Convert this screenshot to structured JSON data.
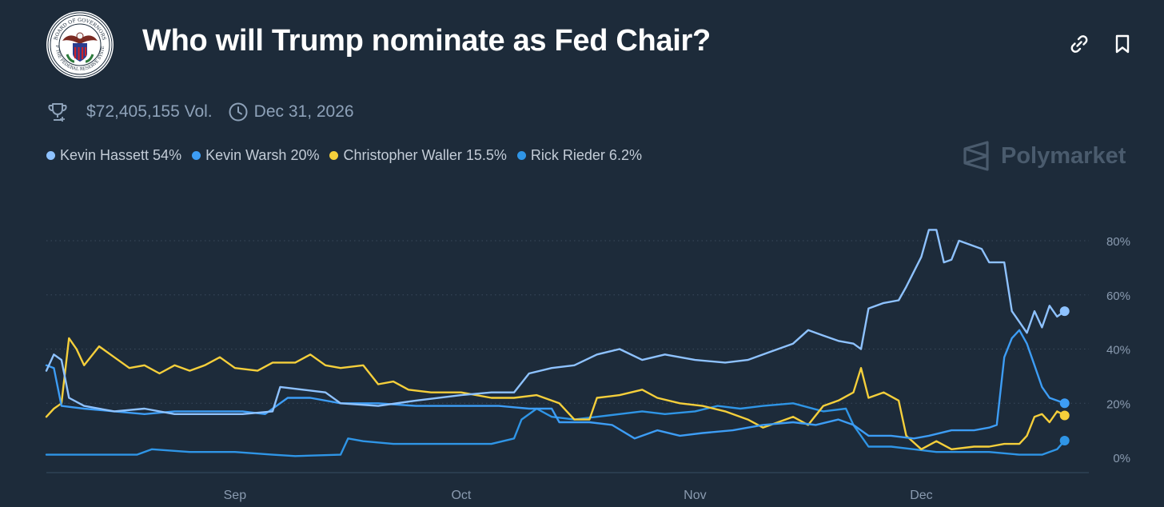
{
  "header": {
    "title": "Who will Trump nominate as Fed Chair?",
    "logo_text_top": "BOARD OF GOVERNORS",
    "logo_text_bottom": "OF THE FEDERAL RESERVE SYSTEM"
  },
  "meta": {
    "volume": "$72,405,155 Vol.",
    "end_date": "Dec 31, 2026",
    "volume_icon": "trophy-icon",
    "date_icon": "clock-icon"
  },
  "toolbar": {
    "link_icon": "link-icon",
    "bookmark_icon": "bookmark-icon"
  },
  "brand": {
    "name": "Polymarket"
  },
  "legend": [
    {
      "label": "Kevin Hassett 54%",
      "color": "#8ec2ff"
    },
    {
      "label": "Kevin Warsh 20%",
      "color": "#3d9df5"
    },
    {
      "label": "Christopher Waller 15.5%",
      "color": "#f5cf3b"
    },
    {
      "label": "Rick Rieder 6.2%",
      "color": "#2f95e6"
    }
  ],
  "colors": {
    "background": "#1d2b3a",
    "grid": "#3a4a5c",
    "axis_text": "#8a9bb0"
  },
  "chart_data": {
    "type": "line",
    "x_range": [
      "2025-08-07",
      "2025-12-23"
    ],
    "ylim": [
      0,
      90
    ],
    "y_ticks": [
      0,
      20,
      40,
      60,
      80
    ],
    "y_tick_labels": [
      "0%",
      "20%",
      "40%",
      "60%",
      "80%"
    ],
    "x_ticks": [
      {
        "date": "2025-09-01",
        "label": "Sep"
      },
      {
        "date": "2025-10-01",
        "label": "Oct"
      },
      {
        "date": "2025-11-01",
        "label": "Nov"
      },
      {
        "date": "2025-12-01",
        "label": "Dec"
      }
    ],
    "grid": true,
    "legend_position": "top-left",
    "series": [
      {
        "name": "Kevin Hassett",
        "color": "#8ec2ff",
        "points": [
          [
            "2025-08-07",
            32
          ],
          [
            "2025-08-08",
            38
          ],
          [
            "2025-08-09",
            36
          ],
          [
            "2025-08-10",
            22
          ],
          [
            "2025-08-12",
            19
          ],
          [
            "2025-08-16",
            17
          ],
          [
            "2025-08-20",
            18
          ],
          [
            "2025-08-24",
            16
          ],
          [
            "2025-08-28",
            16
          ],
          [
            "2025-09-02",
            16
          ],
          [
            "2025-09-06",
            17
          ],
          [
            "2025-09-07",
            26
          ],
          [
            "2025-09-10",
            25
          ],
          [
            "2025-09-13",
            24
          ],
          [
            "2025-09-15",
            20
          ],
          [
            "2025-09-20",
            19
          ],
          [
            "2025-09-25",
            21
          ],
          [
            "2025-10-01",
            23
          ],
          [
            "2025-10-05",
            24
          ],
          [
            "2025-10-08",
            24
          ],
          [
            "2025-10-10",
            31
          ],
          [
            "2025-10-13",
            33
          ],
          [
            "2025-10-16",
            34
          ],
          [
            "2025-10-19",
            38
          ],
          [
            "2025-10-22",
            40
          ],
          [
            "2025-10-25",
            36
          ],
          [
            "2025-10-28",
            38
          ],
          [
            "2025-11-01",
            36
          ],
          [
            "2025-11-05",
            35
          ],
          [
            "2025-11-08",
            36
          ],
          [
            "2025-11-11",
            39
          ],
          [
            "2025-11-14",
            42
          ],
          [
            "2025-11-16",
            47
          ],
          [
            "2025-11-18",
            45
          ],
          [
            "2025-11-20",
            43
          ],
          [
            "2025-11-22",
            42
          ],
          [
            "2025-11-23",
            40
          ],
          [
            "2025-11-24",
            55
          ],
          [
            "2025-11-26",
            57
          ],
          [
            "2025-11-28",
            58
          ],
          [
            "2025-11-29",
            63
          ],
          [
            "2025-12-01",
            74
          ],
          [
            "2025-12-02",
            84
          ],
          [
            "2025-12-03",
            84
          ],
          [
            "2025-12-04",
            72
          ],
          [
            "2025-12-05",
            73
          ],
          [
            "2025-12-06",
            80
          ],
          [
            "2025-12-07",
            79
          ],
          [
            "2025-12-09",
            77
          ],
          [
            "2025-12-10",
            72
          ],
          [
            "2025-12-12",
            72
          ],
          [
            "2025-12-13",
            54
          ],
          [
            "2025-12-14",
            50
          ],
          [
            "2025-12-15",
            46
          ],
          [
            "2025-12-16",
            54
          ],
          [
            "2025-12-17",
            48
          ],
          [
            "2025-12-18",
            56
          ],
          [
            "2025-12-19",
            52
          ],
          [
            "2025-12-20",
            54
          ]
        ]
      },
      {
        "name": "Kevin Warsh",
        "color": "#3d9df5",
        "points": [
          [
            "2025-08-07",
            34
          ],
          [
            "2025-08-08",
            33
          ],
          [
            "2025-08-09",
            19
          ],
          [
            "2025-08-12",
            18
          ],
          [
            "2025-08-16",
            17
          ],
          [
            "2025-08-20",
            16
          ],
          [
            "2025-08-24",
            17
          ],
          [
            "2025-08-28",
            17
          ],
          [
            "2025-09-02",
            17
          ],
          [
            "2025-09-05",
            16
          ],
          [
            "2025-09-08",
            22
          ],
          [
            "2025-09-11",
            22
          ],
          [
            "2025-09-15",
            20
          ],
          [
            "2025-09-20",
            20
          ],
          [
            "2025-09-25",
            19
          ],
          [
            "2025-10-01",
            19
          ],
          [
            "2025-10-06",
            19
          ],
          [
            "2025-10-10",
            18
          ],
          [
            "2025-10-13",
            18
          ],
          [
            "2025-10-14",
            13
          ],
          [
            "2025-10-18",
            13
          ],
          [
            "2025-10-21",
            12
          ],
          [
            "2025-10-24",
            7
          ],
          [
            "2025-10-27",
            10
          ],
          [
            "2025-10-30",
            8
          ],
          [
            "2025-11-02",
            9
          ],
          [
            "2025-11-06",
            10
          ],
          [
            "2025-11-10",
            12
          ],
          [
            "2025-11-14",
            13
          ],
          [
            "2025-11-17",
            12
          ],
          [
            "2025-11-20",
            14
          ],
          [
            "2025-11-22",
            12
          ],
          [
            "2025-11-24",
            8
          ],
          [
            "2025-11-27",
            8
          ],
          [
            "2025-11-30",
            7
          ],
          [
            "2025-12-02",
            8
          ],
          [
            "2025-12-05",
            10
          ],
          [
            "2025-12-08",
            10
          ],
          [
            "2025-12-10",
            11
          ],
          [
            "2025-12-11",
            12
          ],
          [
            "2025-12-12",
            37
          ],
          [
            "2025-12-13",
            44
          ],
          [
            "2025-12-14",
            47
          ],
          [
            "2025-12-15",
            42
          ],
          [
            "2025-12-16",
            34
          ],
          [
            "2025-12-17",
            26
          ],
          [
            "2025-12-18",
            22
          ],
          [
            "2025-12-20",
            20
          ]
        ]
      },
      {
        "name": "Christopher Waller",
        "color": "#f5cf3b",
        "points": [
          [
            "2025-08-07",
            15
          ],
          [
            "2025-08-08",
            18
          ],
          [
            "2025-08-09",
            20
          ],
          [
            "2025-08-10",
            44
          ],
          [
            "2025-08-11",
            40
          ],
          [
            "2025-08-12",
            34
          ],
          [
            "2025-08-14",
            41
          ],
          [
            "2025-08-16",
            37
          ],
          [
            "2025-08-18",
            33
          ],
          [
            "2025-08-20",
            34
          ],
          [
            "2025-08-22",
            31
          ],
          [
            "2025-08-24",
            34
          ],
          [
            "2025-08-26",
            32
          ],
          [
            "2025-08-28",
            34
          ],
          [
            "2025-08-30",
            37
          ],
          [
            "2025-09-01",
            33
          ],
          [
            "2025-09-04",
            32
          ],
          [
            "2025-09-06",
            35
          ],
          [
            "2025-09-09",
            35
          ],
          [
            "2025-09-11",
            38
          ],
          [
            "2025-09-13",
            34
          ],
          [
            "2025-09-15",
            33
          ],
          [
            "2025-09-18",
            34
          ],
          [
            "2025-09-20",
            27
          ],
          [
            "2025-09-22",
            28
          ],
          [
            "2025-09-24",
            25
          ],
          [
            "2025-09-27",
            24
          ],
          [
            "2025-10-01",
            24
          ],
          [
            "2025-10-05",
            22
          ],
          [
            "2025-10-08",
            22
          ],
          [
            "2025-10-11",
            23
          ],
          [
            "2025-10-14",
            20
          ],
          [
            "2025-10-16",
            14
          ],
          [
            "2025-10-18",
            14
          ],
          [
            "2025-10-19",
            22
          ],
          [
            "2025-10-22",
            23
          ],
          [
            "2025-10-25",
            25
          ],
          [
            "2025-10-27",
            22
          ],
          [
            "2025-10-30",
            20
          ],
          [
            "2025-11-02",
            19
          ],
          [
            "2025-11-05",
            17
          ],
          [
            "2025-11-08",
            14
          ],
          [
            "2025-11-10",
            11
          ],
          [
            "2025-11-12",
            13
          ],
          [
            "2025-11-14",
            15
          ],
          [
            "2025-11-16",
            12
          ],
          [
            "2025-11-18",
            19
          ],
          [
            "2025-11-20",
            21
          ],
          [
            "2025-11-22",
            24
          ],
          [
            "2025-11-23",
            33
          ],
          [
            "2025-11-24",
            22
          ],
          [
            "2025-11-26",
            24
          ],
          [
            "2025-11-28",
            21
          ],
          [
            "2025-11-29",
            8
          ],
          [
            "2025-12-01",
            3
          ],
          [
            "2025-12-03",
            6
          ],
          [
            "2025-12-05",
            3
          ],
          [
            "2025-12-08",
            4
          ],
          [
            "2025-12-10",
            4
          ],
          [
            "2025-12-12",
            5
          ],
          [
            "2025-12-14",
            5
          ],
          [
            "2025-12-15",
            8
          ],
          [
            "2025-12-16",
            15
          ],
          [
            "2025-12-17",
            16
          ],
          [
            "2025-12-18",
            13
          ],
          [
            "2025-12-19",
            17
          ],
          [
            "2025-12-20",
            15.5
          ]
        ]
      },
      {
        "name": "Rick Rieder",
        "color": "#2f95e6",
        "points": [
          [
            "2025-08-07",
            1
          ],
          [
            "2025-08-19",
            1
          ],
          [
            "2025-08-21",
            3
          ],
          [
            "2025-08-26",
            2
          ],
          [
            "2025-09-01",
            2
          ],
          [
            "2025-09-06",
            1
          ],
          [
            "2025-09-09",
            0.5
          ],
          [
            "2025-09-15",
            1
          ],
          [
            "2025-09-16",
            7
          ],
          [
            "2025-09-18",
            6
          ],
          [
            "2025-09-22",
            5
          ],
          [
            "2025-09-26",
            5
          ],
          [
            "2025-10-01",
            5
          ],
          [
            "2025-10-05",
            5
          ],
          [
            "2025-10-08",
            7
          ],
          [
            "2025-10-09",
            14
          ],
          [
            "2025-10-11",
            18
          ],
          [
            "2025-10-13",
            15
          ],
          [
            "2025-10-16",
            14
          ],
          [
            "2025-10-19",
            15
          ],
          [
            "2025-10-22",
            16
          ],
          [
            "2025-10-25",
            17
          ],
          [
            "2025-10-28",
            16
          ],
          [
            "2025-11-01",
            17
          ],
          [
            "2025-11-04",
            19
          ],
          [
            "2025-11-07",
            18
          ],
          [
            "2025-11-10",
            19
          ],
          [
            "2025-11-14",
            20
          ],
          [
            "2025-11-18",
            17
          ],
          [
            "2025-11-21",
            18
          ],
          [
            "2025-11-22",
            12
          ],
          [
            "2025-11-24",
            4
          ],
          [
            "2025-11-27",
            4
          ],
          [
            "2025-11-30",
            3
          ],
          [
            "2025-12-03",
            2
          ],
          [
            "2025-12-06",
            2
          ],
          [
            "2025-12-10",
            2
          ],
          [
            "2025-12-14",
            1
          ],
          [
            "2025-12-17",
            1
          ],
          [
            "2025-12-19",
            3
          ],
          [
            "2025-12-20",
            6.2
          ]
        ]
      }
    ]
  }
}
